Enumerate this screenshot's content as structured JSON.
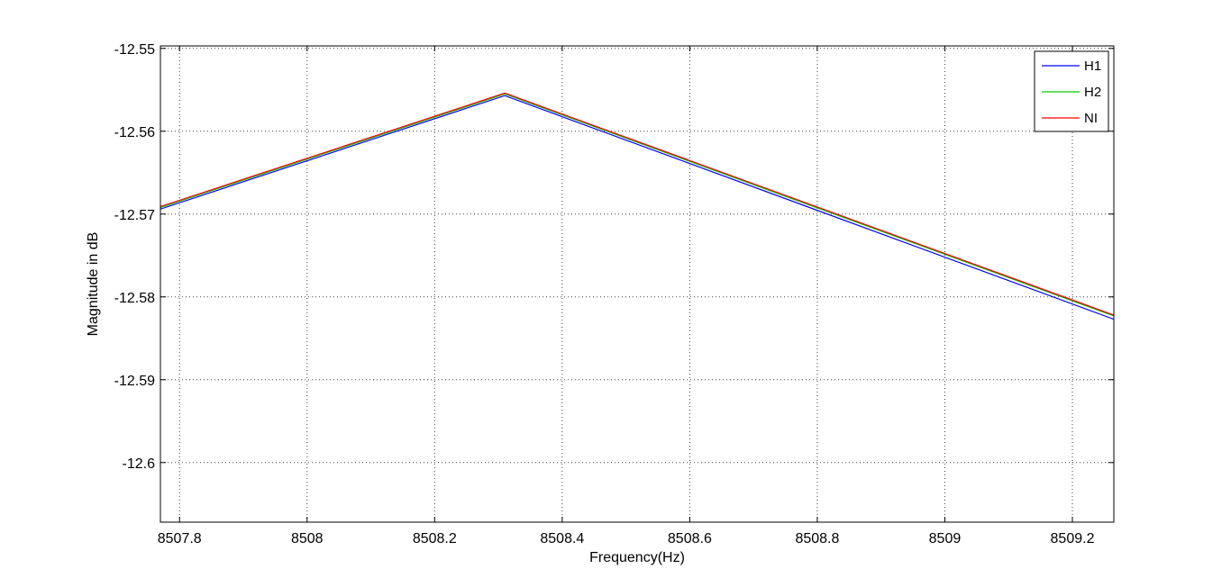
{
  "chart_data": {
    "type": "line",
    "title": "",
    "xlabel": "Frequency(Hz)",
    "ylabel": "Magnitude in dB",
    "xlim": [
      8507.77,
      8509.265
    ],
    "ylim": [
      -12.6072,
      -12.5497
    ],
    "xticks": [
      8507.8,
      8508,
      8508.2,
      8508.4,
      8508.6,
      8508.8,
      8509,
      8509.2
    ],
    "xtick_labels": [
      "8507.8",
      "8508",
      "8508.2",
      "8508.4",
      "8508.6",
      "8508.8",
      "8509",
      "8509.2"
    ],
    "yticks": [
      -12.55,
      -12.56,
      -12.57,
      -12.58,
      -12.59,
      -12.6
    ],
    "ytick_labels": [
      "-12.55",
      "-12.56",
      "-12.57",
      "-12.58",
      "-12.59",
      "-12.6"
    ],
    "grid": true,
    "legend_position": "top-right",
    "series": [
      {
        "name": "H1",
        "color": "#0000ff",
        "x": [
          8507.77,
          8508.31,
          8509.265
        ],
        "y": [
          -12.5694,
          -12.5557,
          -12.5827
        ]
      },
      {
        "name": "H2",
        "color": "#00cc00",
        "x": [
          8507.77,
          8508.31,
          8509.265
        ],
        "y": [
          -12.5692,
          -12.5555,
          -12.5823
        ]
      },
      {
        "name": "NI",
        "color": "#ff0000",
        "x": [
          8507.77,
          8508.31,
          8509.265
        ],
        "y": [
          -12.5691,
          -12.5554,
          -12.5822
        ]
      }
    ]
  }
}
